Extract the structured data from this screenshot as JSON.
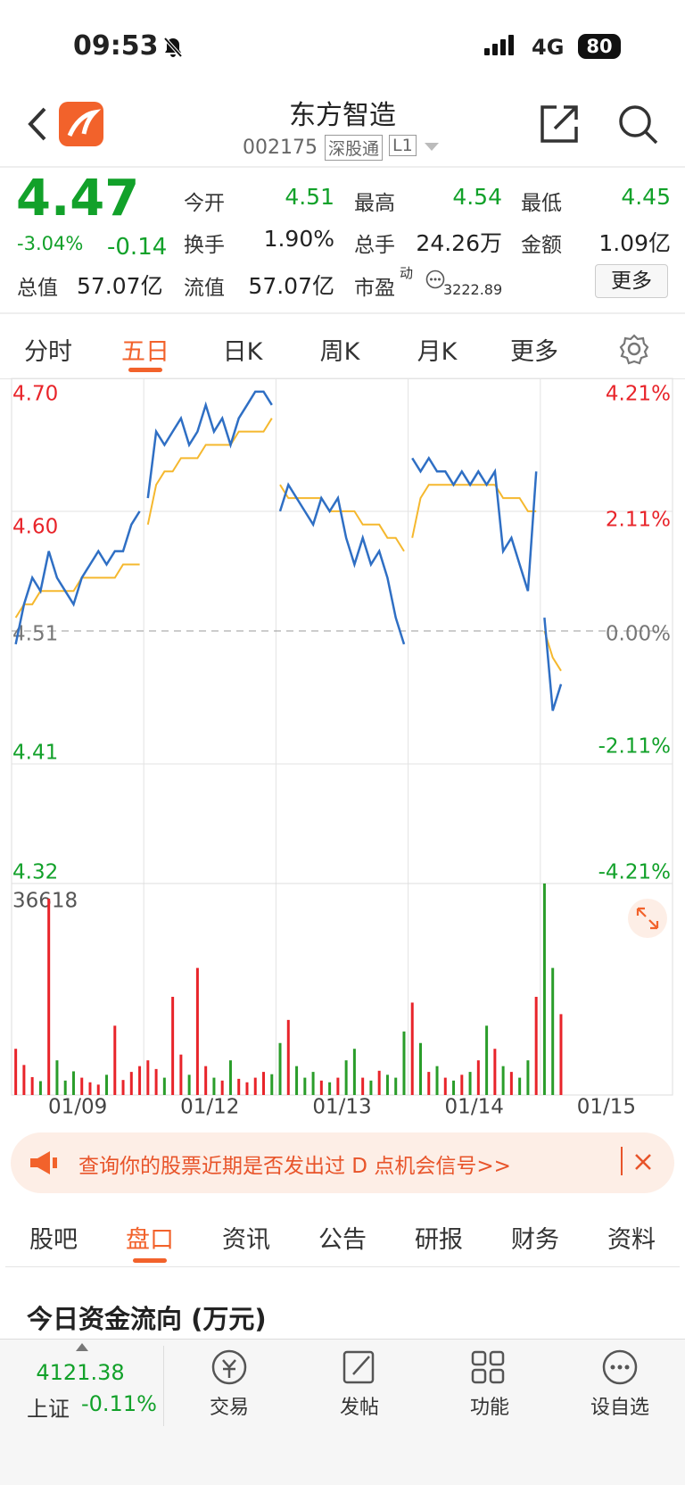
{
  "status": {
    "time": "09:53",
    "network": "4G",
    "battery": "80"
  },
  "header": {
    "title": "东方智造",
    "code": "002175",
    "tags": [
      "深股通",
      "L1"
    ]
  },
  "quote": {
    "price": "4.47",
    "change_pct": "-3.04%",
    "change": "-0.14",
    "total_value_label": "总值",
    "total_value": "57.07亿",
    "stats": [
      {
        "label": "今开",
        "value": "4.51"
      },
      {
        "label": "最高",
        "value": "4.54"
      },
      {
        "label": "最低",
        "value": "4.45"
      },
      {
        "label": "换手",
        "value": "1.90%"
      },
      {
        "label": "总手",
        "value": "24.26万"
      },
      {
        "label": "金额",
        "value": "1.09亿"
      },
      {
        "label": "流值",
        "value": "57.07亿"
      }
    ],
    "pe_label": "市盈",
    "pe_sup": "动",
    "pe_value": "3222.89",
    "more": "更多"
  },
  "tabs": [
    "分时",
    "五日",
    "日K",
    "周K",
    "月K",
    "更多"
  ],
  "chart": {
    "type": "line",
    "ylim": [
      4.32,
      4.7
    ],
    "yticks": [
      {
        "value": 4.7,
        "label": "4.70"
      },
      {
        "value": 4.6,
        "label": "4.60"
      },
      4.51,
      4.41,
      4.32
    ],
    "y2lim": [
      -4.21,
      4.21
    ],
    "y2ticks": [
      {
        "value": 4.21,
        "label": "4.21%"
      },
      {
        "value": 2.11,
        "label": "2.11%"
      },
      {
        "value": 0,
        "label": "0.00%"
      },
      {
        "value": -2.11,
        "label": "-2.11%"
      },
      {
        "value": -4.21,
        "label": "-4.21%"
      }
    ],
    "price_color": "#2f6fc4",
    "avg_color": "#f5b82e",
    "up_color": "#e8242a",
    "down_color": "#2a9d2a",
    "volume_ylim": [
      0,
      36618
    ],
    "volume_max_label": "36618",
    "days": [
      {
        "date": "01/09",
        "price": [
          4.5,
          4.53,
          4.55,
          4.54,
          4.57,
          4.55,
          4.54,
          4.53,
          4.55,
          4.56,
          4.57,
          4.56,
          4.57,
          4.57,
          4.59,
          4.6
        ],
        "avg": [
          4.52,
          4.53,
          4.53,
          4.54,
          4.54,
          4.54,
          4.54,
          4.54,
          4.55,
          4.55,
          4.55,
          4.55,
          4.55,
          4.56,
          4.56,
          4.56
        ],
        "volume": [
          8000,
          5200,
          3100,
          2400,
          34000,
          6000,
          2500,
          4100,
          3000,
          2200,
          1800,
          3500,
          12000,
          2600,
          4000,
          5000
        ]
      },
      {
        "date": "01/12",
        "price": [
          4.61,
          4.66,
          4.65,
          4.66,
          4.67,
          4.65,
          4.66,
          4.68,
          4.66,
          4.67,
          4.65,
          4.67,
          4.68,
          4.69,
          4.69,
          4.68
        ],
        "avg": [
          4.59,
          4.62,
          4.63,
          4.63,
          4.64,
          4.64,
          4.64,
          4.65,
          4.65,
          4.65,
          4.65,
          4.66,
          4.66,
          4.66,
          4.66,
          4.67
        ],
        "volume": [
          6000,
          4500,
          3000,
          17000,
          7000,
          3500,
          22000,
          5000,
          3000,
          2500,
          6000,
          2800,
          2200,
          3000,
          4000,
          3600
        ]
      },
      {
        "date": "01/13",
        "price": [
          4.6,
          4.62,
          4.61,
          4.6,
          4.59,
          4.61,
          4.6,
          4.61,
          4.58,
          4.56,
          4.58,
          4.56,
          4.57,
          4.55,
          4.52,
          4.5
        ],
        "avg": [
          4.62,
          4.61,
          4.61,
          4.61,
          4.61,
          4.61,
          4.6,
          4.6,
          4.6,
          4.6,
          4.59,
          4.59,
          4.59,
          4.58,
          4.58,
          4.57
        ],
        "volume": [
          9000,
          13000,
          5000,
          3000,
          4000,
          2500,
          2200,
          3000,
          6000,
          8000,
          3000,
          2500,
          4200,
          3500,
          3000,
          11000
        ]
      },
      {
        "date": "01/14",
        "price": [
          4.64,
          4.63,
          4.64,
          4.63,
          4.63,
          4.62,
          4.63,
          4.62,
          4.63,
          4.62,
          4.63,
          4.57,
          4.58,
          4.56,
          4.54,
          4.63
        ],
        "avg": [
          4.58,
          4.61,
          4.62,
          4.62,
          4.62,
          4.62,
          4.62,
          4.62,
          4.62,
          4.62,
          4.62,
          4.61,
          4.61,
          4.61,
          4.6,
          4.6
        ],
        "volume": [
          16000,
          9000,
          4000,
          5000,
          3000,
          2500,
          3500,
          4000,
          6000,
          12000,
          8000,
          5000,
          4000,
          3000,
          6000,
          17000
        ]
      },
      {
        "date": "01/15",
        "price": [
          4.52,
          4.45,
          4.47
        ],
        "avg": [
          4.51,
          4.49,
          4.48
        ],
        "volume": [
          36618,
          22000,
          14000
        ]
      }
    ]
  },
  "banner": {
    "text": "查询你的股票近期是否发出过 D 点机会信号>>"
  },
  "sections": [
    "股吧",
    "盘口",
    "资讯",
    "公告",
    "研报",
    "财务",
    "资料"
  ],
  "section_title": "今日资金流向 (万元)",
  "footer": {
    "index_value": "4121.38",
    "index_name": "上证",
    "index_change": "-0.11%",
    "actions": [
      "交易",
      "发帖",
      "功能",
      "设自选"
    ]
  }
}
